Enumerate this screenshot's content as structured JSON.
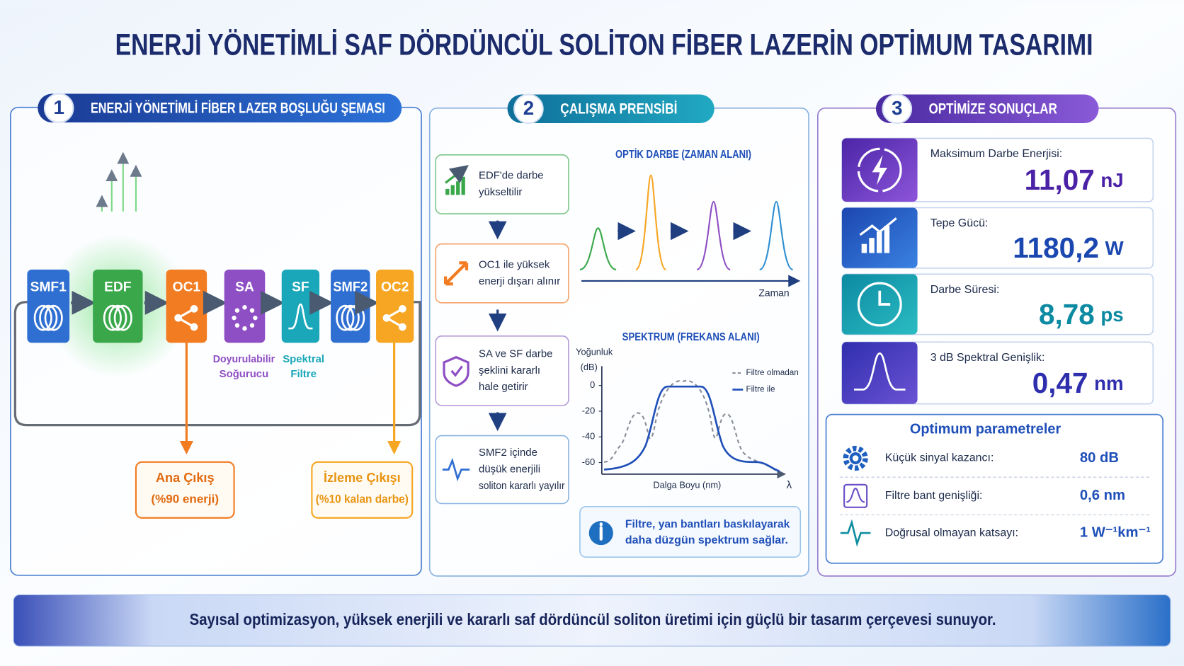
{
  "title": "ENERJİ YÖNETİMLİ SAF DÖRDÜNCÜL SOLİTON FİBER LAZERİN OPTİMUM TASARIMI",
  "cavity": {
    "number": "1",
    "title": "ENERJİ YÖNETİMLİ FİBER LAZER BOŞLUĞU ŞEMASI",
    "components": [
      "SMF1",
      "EDF",
      "OC1",
      "SA",
      "SF",
      "SMF2",
      "OC2"
    ],
    "notes": {
      "sa": [
        "Doyurulabilir",
        "Soğurucu"
      ],
      "sf": [
        "Spektral",
        "Filtre"
      ]
    },
    "outputs": [
      {
        "title": "Ana Çıkış",
        "detail": "(%90 enerji)"
      },
      {
        "title": "İzleme Çıkışı",
        "detail": "(%10 kalan darbe)"
      }
    ]
  },
  "principle": {
    "number": "2",
    "title": "ÇALIŞMA PRENSİBİ",
    "steps": [
      [
        "EDF'de darbe",
        "yükseltilir"
      ],
      [
        "OC1 ile yüksek",
        "enerji dışarı alınır"
      ],
      [
        "SA ve SF darbe",
        "şeklini kararlı",
        "hale getirir"
      ],
      [
        "SMF2 içinde",
        "düşük enerjili",
        "soliton kararlı yayılır"
      ]
    ],
    "time_chart": {
      "title": "OPTİK DARBE (ZAMAN ALANI)",
      "xlabel": "Zaman"
    },
    "spectrum_chart": {
      "title": "SPEKTRUM (FREKANS ALANI)",
      "ylabel": [
        "Yoğunluk",
        "(dB)"
      ],
      "xlabel": "Dalga Boyu (nm)",
      "xaxis_symbol": "λ",
      "ylim": [
        -69,
        15
      ],
      "yticks": [
        0,
        -20,
        -40,
        -60
      ],
      "legend": [
        "Filtre olmadan",
        "Filtre ile"
      ]
    },
    "note": [
      "Filtre, yan bantları baskılayarak",
      "daha düzgün spektrum sağlar."
    ]
  },
  "results": {
    "number": "3",
    "title": "OPTİMİZE SONUÇLAR",
    "metrics": [
      {
        "label": "Maksimum Darbe Enerjisi:",
        "value": "11,07",
        "unit": "nJ"
      },
      {
        "label": "Tepe Gücü:",
        "value": "1180,2",
        "unit": "W"
      },
      {
        "label": "Darbe Süresi:",
        "value": "8,78",
        "unit": "ps"
      },
      {
        "label": "3 dB Spektral Genişlik:",
        "value": "0,47",
        "unit": "nm"
      }
    ],
    "parameters": {
      "title": "Optimum parametreler",
      "rows": [
        [
          "Küçük sinyal kazancı:",
          "80 dB"
        ],
        [
          "Filtre bant genişliği:",
          "0,6 nm"
        ],
        [
          "Doğrusal olmayan katsayı:",
          "1 W⁻¹km⁻¹"
        ]
      ]
    }
  },
  "footer": "Sayısal optimizasyon, yüksek enerjili ve kararlı saf dördüncül soliton üretimi için güçlü bir tasarım çerçevesi sunuyor."
}
